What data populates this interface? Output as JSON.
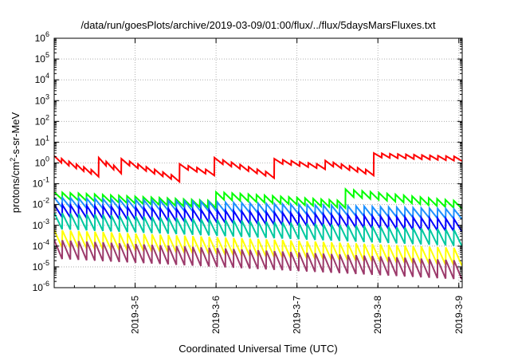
{
  "chart_data": {
    "type": "line",
    "title": "/data/run/goesPlots/archive/2019-03-09/01:00/flux/../flux/5daysMarsFluxes.txt",
    "xlabel": "Coordinated Universal Time (UTC)",
    "ylabel": {
      "base": "protons/cm",
      "sup": "2",
      "rest": "-s-sr-MeV"
    },
    "y_scale": "log",
    "ylim": [
      1e-06,
      1000000.0
    ],
    "xlim": [
      "2019-03-04 00:00",
      "2019-03-09 01:00"
    ],
    "grid": true,
    "legend": "none",
    "x_ticks": [
      "2019-3-5",
      "2019-3-6",
      "2019-3-7",
      "2019-3-8",
      "2019-3-9"
    ],
    "y_ticks": [
      {
        "base": "10",
        "exp": "-6"
      },
      {
        "base": "10",
        "exp": "-5"
      },
      {
        "base": "10",
        "exp": "-4"
      },
      {
        "base": "10",
        "exp": "-3"
      },
      {
        "base": "10",
        "exp": "-2"
      },
      {
        "base": "10",
        "exp": "-1"
      },
      {
        "base": "10",
        "exp": "0"
      },
      {
        "base": "10",
        "exp": "1"
      },
      {
        "base": "10",
        "exp": "2"
      },
      {
        "base": "10",
        "exp": "3"
      },
      {
        "base": "10",
        "exp": "4"
      },
      {
        "base": "10",
        "exp": "5"
      },
      {
        "base": "10",
        "exp": "6"
      }
    ],
    "series": [
      {
        "color": "#ff0000",
        "width": 2,
        "start_days": [
          0.0,
          0.55,
          0.83,
          1.55,
          1.98,
          2.72,
          3.35,
          3.95,
          5.04
        ],
        "peak_values": [
          2.2,
          1.8,
          1.6,
          0.9,
          1.8,
          1.6,
          1.3,
          3.0,
          3.0
        ],
        "end_values": [
          0.35,
          0.5,
          0.2,
          0.4,
          0.3,
          0.8,
          0.4,
          2.0,
          2.5
        ],
        "sawtooth_amplitude": 1.6,
        "sawtooth_period_days": 0.1
      },
      {
        "color": "#00ff00",
        "width": 2,
        "start_days": [
          0.0,
          2.0,
          3.6,
          5.04
        ],
        "peak_values": [
          0.04,
          0.04,
          0.055,
          0.025
        ],
        "end_values": [
          0.015,
          0.015,
          0.014,
          0.015
        ],
        "sawtooth_amplitude": 2.2,
        "sawtooth_period_days": 0.1
      },
      {
        "color": "#1e90ff",
        "width": 2,
        "start_days": [
          0.0,
          5.04
        ],
        "peak_values": [
          0.022,
          0.012
        ],
        "end_values": [
          0.006,
          0.004
        ],
        "sawtooth_amplitude": 3.0,
        "sawtooth_period_days": 0.1
      },
      {
        "color": "#0000ff",
        "width": 2,
        "start_days": [
          0.0,
          5.04
        ],
        "peak_values": [
          0.01,
          0.006
        ],
        "end_values": [
          0.002,
          0.0015
        ],
        "sawtooth_amplitude": 4.0,
        "sawtooth_period_days": 0.1
      },
      {
        "color": "#00c8a0",
        "width": 2,
        "start_days": [
          0.0,
          5.04
        ],
        "peak_values": [
          0.004,
          0.0035
        ],
        "end_values": [
          0.0006,
          0.0005
        ],
        "sawtooth_amplitude": 6.0,
        "sawtooth_period_days": 0.1
      },
      {
        "color": "#ffff00",
        "width": 2,
        "start_days": [
          0.0,
          5.04
        ],
        "peak_values": [
          0.0006,
          0.0004
        ],
        "end_values": [
          8e-05,
          6e-05
        ],
        "sawtooth_amplitude": 7.0,
        "sawtooth_period_days": 0.1
      },
      {
        "color": "#9c3a6b",
        "width": 2,
        "start_days": [
          0.0,
          5.04
        ],
        "peak_values": [
          0.0002,
          0.00015
        ],
        "end_values": [
          2e-05,
          1.2e-05
        ],
        "sawtooth_amplitude": 8.0,
        "sawtooth_period_days": 0.1
      }
    ]
  }
}
